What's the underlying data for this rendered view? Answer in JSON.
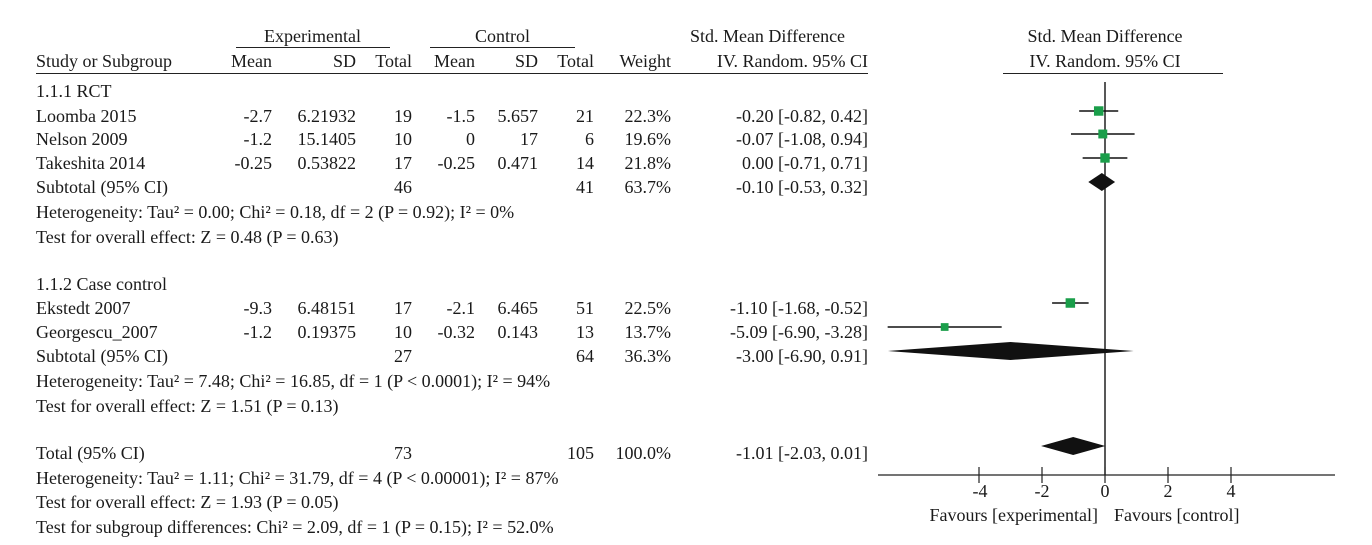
{
  "header": {
    "group_experimental": "Experimental",
    "group_control": "Control",
    "effect_title": "Std. Mean Difference",
    "col_study": "Study or Subgroup",
    "col_mean": "Mean",
    "col_sd": "SD",
    "col_total": "Total",
    "col_weight": "Weight",
    "col_method": "IV. Random. 95% CI",
    "plot_title": "Std. Mean Difference",
    "plot_method": "IV. Random. 95% CI"
  },
  "subgroups": [
    {
      "title": "1.1.1 RCT",
      "studies": [
        {
          "name": "Loomba 2015",
          "e_mean": "-2.7",
          "e_sd": "6.21932",
          "e_total": "19",
          "c_mean": "-1.5",
          "c_sd": "5.657",
          "c_total": "21",
          "weight": "22.3%",
          "ci_text": "-0.20 [-0.82, 0.42]"
        },
        {
          "name": "Nelson 2009",
          "e_mean": "-1.2",
          "e_sd": "15.1405",
          "e_total": "10",
          "c_mean": "0",
          "c_sd": "17",
          "c_total": "6",
          "weight": "19.6%",
          "ci_text": "-0.07 [-1.08, 0.94]"
        },
        {
          "name": "Takeshita 2014",
          "e_mean": "-0.25",
          "e_sd": "0.53822",
          "e_total": "17",
          "c_mean": "-0.25",
          "c_sd": "0.471",
          "c_total": "14",
          "weight": "21.8%",
          "ci_text": "0.00 [-0.71, 0.71]"
        }
      ],
      "subtotal": {
        "label": "Subtotal (95% CI)",
        "e_total": "46",
        "c_total": "41",
        "weight": "63.7%",
        "ci_text": "-0.10 [-0.53, 0.32]"
      },
      "heterogeneity": "Heterogeneity: Tau² = 0.00; Chi² = 0.18, df = 2 (P = 0.92); I² = 0%",
      "overall": "Test for overall effect: Z = 0.48 (P = 0.63)"
    },
    {
      "title": "1.1.2 Case control",
      "studies": [
        {
          "name": "Ekstedt 2007",
          "e_mean": "-9.3",
          "e_sd": "6.48151",
          "e_total": "17",
          "c_mean": "-2.1",
          "c_sd": "6.465",
          "c_total": "51",
          "weight": "22.5%",
          "ci_text": "-1.10 [-1.68, -0.52]"
        },
        {
          "name": "Georgescu_2007",
          "e_mean": "-1.2",
          "e_sd": "0.19375",
          "e_total": "10",
          "c_mean": "-0.32",
          "c_sd": "0.143",
          "c_total": "13",
          "weight": "13.7%",
          "ci_text": "-5.09 [-6.90, -3.28]"
        }
      ],
      "subtotal": {
        "label": "Subtotal (95% CI)",
        "e_total": "27",
        "c_total": "64",
        "weight": "36.3%",
        "ci_text": "-3.00 [-6.90, 0.91]"
      },
      "heterogeneity": "Heterogeneity: Tau² = 7.48; Chi² = 16.85, df = 1 (P < 0.0001); I² = 94%",
      "overall": "Test for overall effect: Z = 1.51 (P = 0.13)"
    }
  ],
  "total": {
    "label": "Total (95% CI)",
    "e_total": "73",
    "c_total": "105",
    "weight": "100.0%",
    "ci_text": "-1.01 [-2.03, 0.01]",
    "heterogeneity": "Heterogeneity: Tau² = 1.11; Chi² = 31.79, df = 4 (P < 0.00001); I² = 87%",
    "overall": "Test for overall effect: Z = 1.93 (P = 0.05)",
    "subgroup_diff": "Test for subgroup differences: Chi² = 2.09, df = 1 (P = 0.15); I² = 52.0%"
  },
  "axis": {
    "ticks": [
      "-4",
      "-2",
      "0",
      "2",
      "4"
    ],
    "favours_left": "Favours [experimental]",
    "favours_right": "Favours [control]"
  },
  "chart_data": {
    "type": "forest",
    "title": "Std. Mean Difference",
    "subtitle": "IV. Random. 95% CI",
    "xlim": [
      -7,
      7
    ],
    "xticks": [
      -4,
      -2,
      0,
      2,
      4
    ],
    "grid": false,
    "marker_color": "#1a9e4a",
    "diamond_color": "#111111",
    "studies": [
      {
        "name": "Loomba 2015",
        "est": -0.2,
        "lo": -0.82,
        "hi": 0.42,
        "weight": 22.3
      },
      {
        "name": "Nelson 2009",
        "est": -0.07,
        "lo": -1.08,
        "hi": 0.94,
        "weight": 19.6
      },
      {
        "name": "Takeshita 2014",
        "est": 0.0,
        "lo": -0.71,
        "hi": 0.71,
        "weight": 21.8
      },
      {
        "name": "Ekstedt 2007",
        "est": -1.1,
        "lo": -1.68,
        "hi": -0.52,
        "weight": 22.5
      },
      {
        "name": "Georgescu_2007",
        "est": -5.09,
        "lo": -6.9,
        "hi": -3.28,
        "weight": 13.7
      }
    ],
    "summaries": [
      {
        "name": "Subtotal (95% CI)",
        "est": -0.1,
        "lo": -0.53,
        "hi": 0.32
      },
      {
        "name": "Subtotal (95% CI)",
        "est": -3.0,
        "lo": -6.9,
        "hi": 0.91
      },
      {
        "name": "Total (95% CI)",
        "est": -1.01,
        "lo": -2.03,
        "hi": 0.01
      }
    ]
  }
}
